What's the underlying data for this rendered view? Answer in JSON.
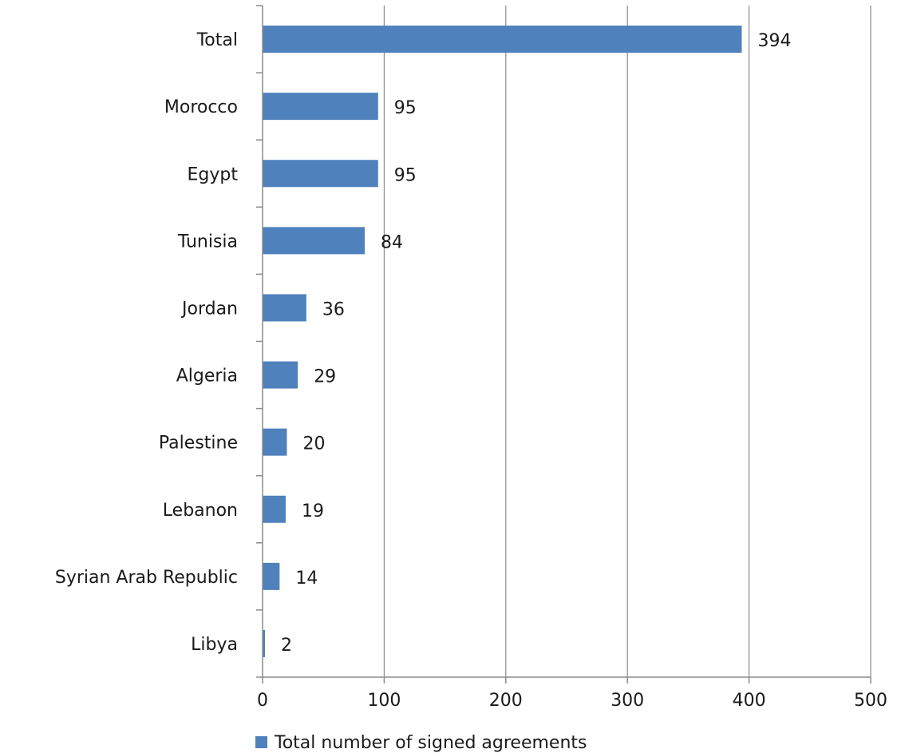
{
  "chart_data": {
    "type": "bar",
    "orientation": "horizontal",
    "categories": [
      "Total",
      "Morocco",
      "Egypt",
      "Tunisia",
      "Jordan",
      "Algeria",
      "Palestine",
      "Lebanon",
      "Syrian Arab Republic",
      "Libya"
    ],
    "series": [
      {
        "name": "Total number of signed agreements",
        "values": [
          394,
          95,
          95,
          84,
          36,
          29,
          20,
          19,
          14,
          2
        ],
        "data_labels": [
          "394",
          "95",
          "95",
          "84",
          "36",
          "29",
          "20",
          "19",
          "14",
          "2"
        ],
        "color": "#4f81bd"
      }
    ],
    "xlim": [
      0,
      500
    ],
    "xticks": [
      0,
      100,
      200,
      300,
      400,
      500
    ],
    "xtick_labels": [
      "0",
      "100",
      "200",
      "300",
      "400",
      "500"
    ],
    "grid": "vertical",
    "legend_position": "bottom",
    "title": "",
    "xlabel": "",
    "ylabel": ""
  },
  "colors": {
    "bar": "#4f81bd",
    "grid": "#8c8c8c",
    "axis": "#8c8c8c",
    "text": "#1a1a1a"
  }
}
